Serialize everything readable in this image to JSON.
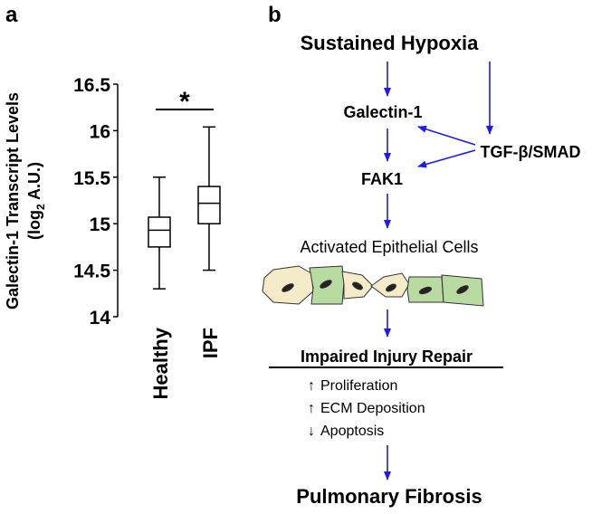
{
  "chart_data": {
    "type": "box",
    "panel_label": "a",
    "ylabel": "Galectin-1 Transcript Levels",
    "yunit_pre": "(log",
    "yunit_sub": "2",
    "yunit_post": " A.U.)",
    "categories": [
      "Healthy",
      "IPF"
    ],
    "values": [
      [
        14.3,
        14.75,
        14.93,
        15.07,
        15.5
      ],
      [
        14.5,
        15.0,
        15.22,
        15.4,
        16.04
      ]
    ],
    "ylim": [
      14,
      16.5
    ],
    "yticks": [
      14,
      14.5,
      15,
      15.5,
      16,
      16.5
    ],
    "annotation": "*"
  },
  "diagram": {
    "panel_label": "b",
    "nodes": [
      "Sustained Hypoxia",
      "Galectin-1",
      "TGF-β/SMAD",
      "FAK1",
      "Activated Epithelial Cells",
      "Impaired Injury Repair",
      "Pulmonary Fibrosis"
    ],
    "effects": [
      {
        "arrow": "↑",
        "text": "Proliferation"
      },
      {
        "arrow": "↑",
        "text": "ECM Deposition"
      },
      {
        "arrow": "↓",
        "text": "Apoptosis"
      }
    ]
  }
}
